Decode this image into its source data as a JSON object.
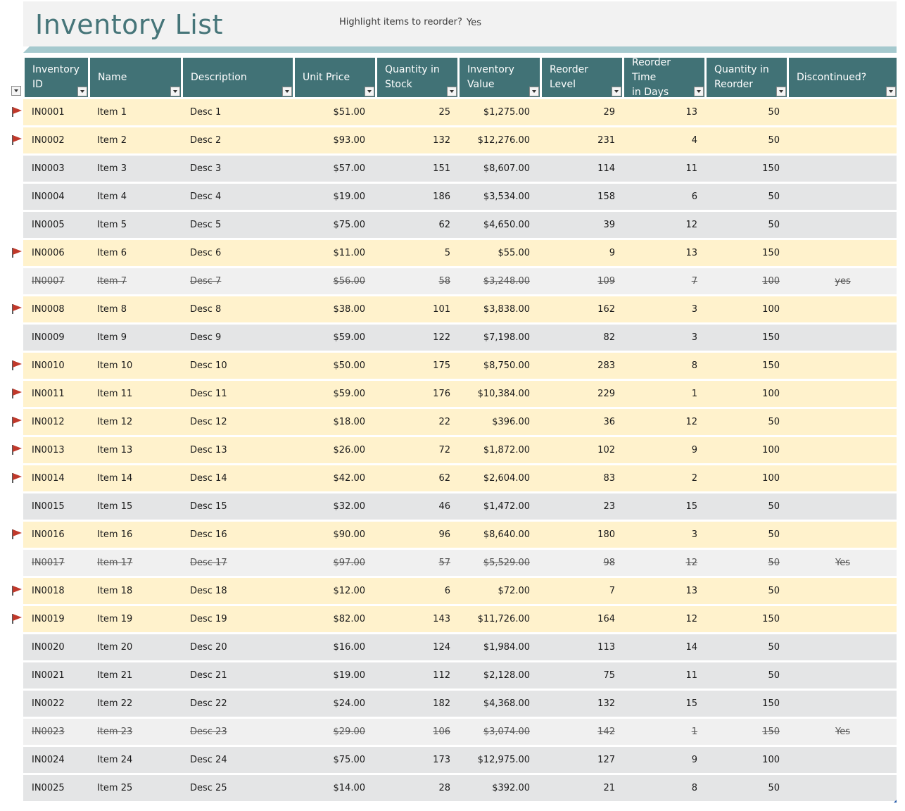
{
  "title": "Inventory List",
  "highlight_prompt": {
    "label": "Highlight items to reorder?",
    "value": "Yes"
  },
  "colors": {
    "header_bg": "#417276",
    "title_text": "#467579",
    "accent_bar": "#a5c9ce",
    "reorder_row": "#fff2cc",
    "normal_row": "#e4e5e6",
    "discontinued_row": "#f0f0f0",
    "flag": "#c0392b"
  },
  "columns": [
    "Inventory\nID",
    "Name",
    "Description",
    "Unit Price",
    "Quantity in\nStock",
    "Inventory\nValue",
    "Reorder Level",
    "Reorder Time\nin Days",
    "Quantity in\nReorder",
    "Discontinued?"
  ],
  "rows": [
    {
      "id": "IN0001",
      "name": "Item 1",
      "desc": "Desc 1",
      "price": "$51.00",
      "qty": "25",
      "value": "$1,275.00",
      "reorder_level": "29",
      "reorder_days": "13",
      "reorder_qty": "50",
      "discontinued": "",
      "flag": true
    },
    {
      "id": "IN0002",
      "name": "Item 2",
      "desc": "Desc 2",
      "price": "$93.00",
      "qty": "132",
      "value": "$12,276.00",
      "reorder_level": "231",
      "reorder_days": "4",
      "reorder_qty": "50",
      "discontinued": "",
      "flag": true
    },
    {
      "id": "IN0003",
      "name": "Item 3",
      "desc": "Desc 3",
      "price": "$57.00",
      "qty": "151",
      "value": "$8,607.00",
      "reorder_level": "114",
      "reorder_days": "11",
      "reorder_qty": "150",
      "discontinued": "",
      "flag": false
    },
    {
      "id": "IN0004",
      "name": "Item 4",
      "desc": "Desc 4",
      "price": "$19.00",
      "qty": "186",
      "value": "$3,534.00",
      "reorder_level": "158",
      "reorder_days": "6",
      "reorder_qty": "50",
      "discontinued": "",
      "flag": false
    },
    {
      "id": "IN0005",
      "name": "Item 5",
      "desc": "Desc 5",
      "price": "$75.00",
      "qty": "62",
      "value": "$4,650.00",
      "reorder_level": "39",
      "reorder_days": "12",
      "reorder_qty": "50",
      "discontinued": "",
      "flag": false
    },
    {
      "id": "IN0006",
      "name": "Item 6",
      "desc": "Desc 6",
      "price": "$11.00",
      "qty": "5",
      "value": "$55.00",
      "reorder_level": "9",
      "reorder_days": "13",
      "reorder_qty": "150",
      "discontinued": "",
      "flag": true
    },
    {
      "id": "IN0007",
      "name": "Item 7",
      "desc": "Desc 7",
      "price": "$56.00",
      "qty": "58",
      "value": "$3,248.00",
      "reorder_level": "109",
      "reorder_days": "7",
      "reorder_qty": "100",
      "discontinued": "yes",
      "flag": false
    },
    {
      "id": "IN0008",
      "name": "Item 8",
      "desc": "Desc 8",
      "price": "$38.00",
      "qty": "101",
      "value": "$3,838.00",
      "reorder_level": "162",
      "reorder_days": "3",
      "reorder_qty": "100",
      "discontinued": "",
      "flag": true
    },
    {
      "id": "IN0009",
      "name": "Item 9",
      "desc": "Desc 9",
      "price": "$59.00",
      "qty": "122",
      "value": "$7,198.00",
      "reorder_level": "82",
      "reorder_days": "3",
      "reorder_qty": "150",
      "discontinued": "",
      "flag": false
    },
    {
      "id": "IN0010",
      "name": "Item 10",
      "desc": "Desc 10",
      "price": "$50.00",
      "qty": "175",
      "value": "$8,750.00",
      "reorder_level": "283",
      "reorder_days": "8",
      "reorder_qty": "150",
      "discontinued": "",
      "flag": true
    },
    {
      "id": "IN0011",
      "name": "Item 11",
      "desc": "Desc 11",
      "price": "$59.00",
      "qty": "176",
      "value": "$10,384.00",
      "reorder_level": "229",
      "reorder_days": "1",
      "reorder_qty": "100",
      "discontinued": "",
      "flag": true
    },
    {
      "id": "IN0012",
      "name": "Item 12",
      "desc": "Desc 12",
      "price": "$18.00",
      "qty": "22",
      "value": "$396.00",
      "reorder_level": "36",
      "reorder_days": "12",
      "reorder_qty": "50",
      "discontinued": "",
      "flag": true
    },
    {
      "id": "IN0013",
      "name": "Item 13",
      "desc": "Desc 13",
      "price": "$26.00",
      "qty": "72",
      "value": "$1,872.00",
      "reorder_level": "102",
      "reorder_days": "9",
      "reorder_qty": "100",
      "discontinued": "",
      "flag": true
    },
    {
      "id": "IN0014",
      "name": "Item 14",
      "desc": "Desc 14",
      "price": "$42.00",
      "qty": "62",
      "value": "$2,604.00",
      "reorder_level": "83",
      "reorder_days": "2",
      "reorder_qty": "100",
      "discontinued": "",
      "flag": true
    },
    {
      "id": "IN0015",
      "name": "Item 15",
      "desc": "Desc 15",
      "price": "$32.00",
      "qty": "46",
      "value": "$1,472.00",
      "reorder_level": "23",
      "reorder_days": "15",
      "reorder_qty": "50",
      "discontinued": "",
      "flag": false
    },
    {
      "id": "IN0016",
      "name": "Item 16",
      "desc": "Desc 16",
      "price": "$90.00",
      "qty": "96",
      "value": "$8,640.00",
      "reorder_level": "180",
      "reorder_days": "3",
      "reorder_qty": "50",
      "discontinued": "",
      "flag": true
    },
    {
      "id": "IN0017",
      "name": "Item 17",
      "desc": "Desc 17",
      "price": "$97.00",
      "qty": "57",
      "value": "$5,529.00",
      "reorder_level": "98",
      "reorder_days": "12",
      "reorder_qty": "50",
      "discontinued": "Yes",
      "flag": false
    },
    {
      "id": "IN0018",
      "name": "Item 18",
      "desc": "Desc 18",
      "price": "$12.00",
      "qty": "6",
      "value": "$72.00",
      "reorder_level": "7",
      "reorder_days": "13",
      "reorder_qty": "50",
      "discontinued": "",
      "flag": true
    },
    {
      "id": "IN0019",
      "name": "Item 19",
      "desc": "Desc 19",
      "price": "$82.00",
      "qty": "143",
      "value": "$11,726.00",
      "reorder_level": "164",
      "reorder_days": "12",
      "reorder_qty": "150",
      "discontinued": "",
      "flag": true
    },
    {
      "id": "IN0020",
      "name": "Item 20",
      "desc": "Desc 20",
      "price": "$16.00",
      "qty": "124",
      "value": "$1,984.00",
      "reorder_level": "113",
      "reorder_days": "14",
      "reorder_qty": "50",
      "discontinued": "",
      "flag": false
    },
    {
      "id": "IN0021",
      "name": "Item 21",
      "desc": "Desc 21",
      "price": "$19.00",
      "qty": "112",
      "value": "$2,128.00",
      "reorder_level": "75",
      "reorder_days": "11",
      "reorder_qty": "50",
      "discontinued": "",
      "flag": false
    },
    {
      "id": "IN0022",
      "name": "Item 22",
      "desc": "Desc 22",
      "price": "$24.00",
      "qty": "182",
      "value": "$4,368.00",
      "reorder_level": "132",
      "reorder_days": "15",
      "reorder_qty": "150",
      "discontinued": "",
      "flag": false
    },
    {
      "id": "IN0023",
      "name": "Item 23",
      "desc": "Desc 23",
      "price": "$29.00",
      "qty": "106",
      "value": "$3,074.00",
      "reorder_level": "142",
      "reorder_days": "1",
      "reorder_qty": "150",
      "discontinued": "Yes",
      "flag": false
    },
    {
      "id": "IN0024",
      "name": "Item 24",
      "desc": "Desc 24",
      "price": "$75.00",
      "qty": "173",
      "value": "$12,975.00",
      "reorder_level": "127",
      "reorder_days": "9",
      "reorder_qty": "100",
      "discontinued": "",
      "flag": false
    },
    {
      "id": "IN0025",
      "name": "Item 25",
      "desc": "Desc 25",
      "price": "$14.00",
      "qty": "28",
      "value": "$392.00",
      "reorder_level": "21",
      "reorder_days": "8",
      "reorder_qty": "50",
      "discontinued": "",
      "flag": false
    }
  ]
}
